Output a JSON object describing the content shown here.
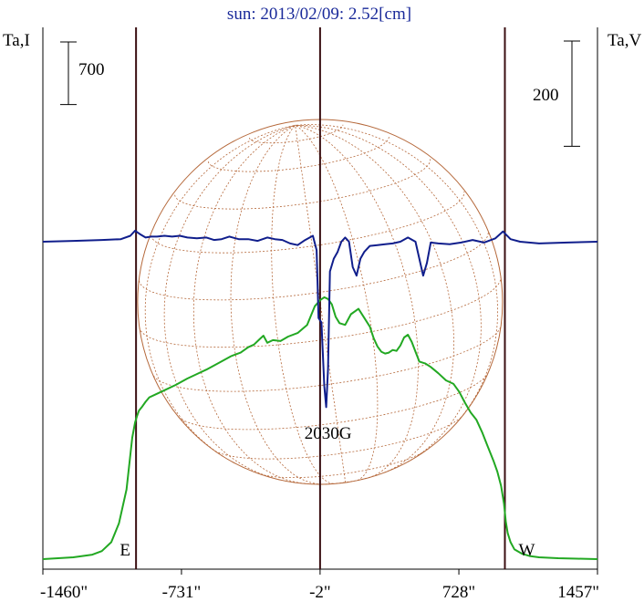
{
  "chart_data": {
    "type": "line",
    "title": "sun: 2013/02/09: 2.52[cm]",
    "left_axis_label": "Ta,I",
    "right_axis_label": "Ta,V",
    "x_ticks": [
      {
        "value": -1460,
        "label": "-1460\""
      },
      {
        "value": -731,
        "label": "-731\""
      },
      {
        "value": -2,
        "label": "-2\""
      },
      {
        "value": 728,
        "label": "728\""
      },
      {
        "value": 1457,
        "label": "1457\""
      }
    ],
    "x_range": [
      -1460,
      1457
    ],
    "i_scale_bar": {
      "label": "700",
      "size": 700
    },
    "v_scale_bar": {
      "label": "200",
      "size": 200
    },
    "markers": {
      "east": "E",
      "west": "W"
    },
    "annotation": {
      "text": "2030G",
      "x": 30
    },
    "limb_positions": [
      -970,
      970
    ],
    "center_position": -2,
    "colors": {
      "intensity": "#22a822",
      "polarization": "#101e8c",
      "disk": "#b5683a",
      "vertical_lines": "#3a0f12"
    },
    "series": [
      {
        "name": "I",
        "x": [
          -1460,
          -1300,
          -1200,
          -1150,
          -1100,
          -1060,
          -1020,
          -990,
          -975,
          -965,
          -955,
          -940,
          -920,
          -900,
          -870,
          -820,
          -760,
          -700,
          -650,
          -600,
          -530,
          -470,
          -420,
          -380,
          -350,
          -320,
          -300,
          -280,
          -250,
          -210,
          -170,
          -120,
          -70,
          -30,
          0,
          20,
          40,
          60,
          80,
          100,
          130,
          160,
          200,
          230,
          260,
          280,
          300,
          320,
          340,
          360,
          380,
          400,
          420,
          440,
          460,
          480,
          500,
          520,
          550,
          580,
          620,
          660,
          700,
          730,
          760,
          790,
          820,
          850,
          880,
          910,
          930,
          950,
          965,
          975,
          985,
          1000,
          1020,
          1060,
          1100,
          1150,
          1250,
          1350,
          1457
        ],
        "y": [
          0,
          20,
          50,
          90,
          190,
          400,
          780,
          1360,
          1530,
          1600,
          1660,
          1700,
          1760,
          1810,
          1840,
          1890,
          1950,
          2020,
          2070,
          2120,
          2200,
          2270,
          2310,
          2370,
          2400,
          2460,
          2500,
          2420,
          2450,
          2440,
          2490,
          2530,
          2620,
          2830,
          2900,
          2930,
          2910,
          2850,
          2710,
          2640,
          2620,
          2740,
          2800,
          2700,
          2600,
          2470,
          2380,
          2320,
          2300,
          2310,
          2340,
          2330,
          2390,
          2480,
          2510,
          2430,
          2320,
          2210,
          2190,
          2150,
          2080,
          2000,
          1960,
          1870,
          1750,
          1640,
          1560,
          1420,
          1260,
          1100,
          980,
          820,
          620,
          420,
          290,
          190,
          110,
          60,
          35,
          20,
          10,
          5,
          0
        ]
      },
      {
        "name": "V",
        "x": [
          -1460,
          -1300,
          -1150,
          -1050,
          -1000,
          -975,
          -950,
          -920,
          -890,
          -860,
          -820,
          -780,
          -740,
          -700,
          -650,
          -600,
          -560,
          -520,
          -480,
          -430,
          -380,
          -330,
          -280,
          -240,
          -200,
          -160,
          -120,
          -80,
          -40,
          -20,
          -10,
          5,
          20,
          30,
          40,
          50,
          70,
          90,
          110,
          130,
          150,
          170,
          190,
          210,
          230,
          260,
          300,
          340,
          380,
          420,
          460,
          500,
          520,
          540,
          560,
          580,
          620,
          680,
          740,
          800,
          860,
          920,
          960,
          1000,
          1050,
          1150,
          1300,
          1457
        ],
        "y": [
          0,
          1,
          2,
          3,
          7,
          13,
          9,
          5,
          6,
          6,
          7,
          6,
          7,
          5,
          4,
          5,
          2,
          3,
          6,
          3,
          3,
          1,
          5,
          3,
          2,
          -2,
          -4,
          2,
          7,
          -10,
          -90,
          -95,
          -170,
          -195,
          -150,
          -35,
          -20,
          -12,
          0,
          5,
          0,
          -30,
          -40,
          -20,
          -12,
          -5,
          -4,
          -3,
          -2,
          0,
          5,
          0,
          -20,
          -40,
          -25,
          -1,
          -2,
          -3,
          -1,
          2,
          -1,
          4,
          12,
          3,
          0,
          -2,
          -1,
          0
        ]
      }
    ]
  }
}
